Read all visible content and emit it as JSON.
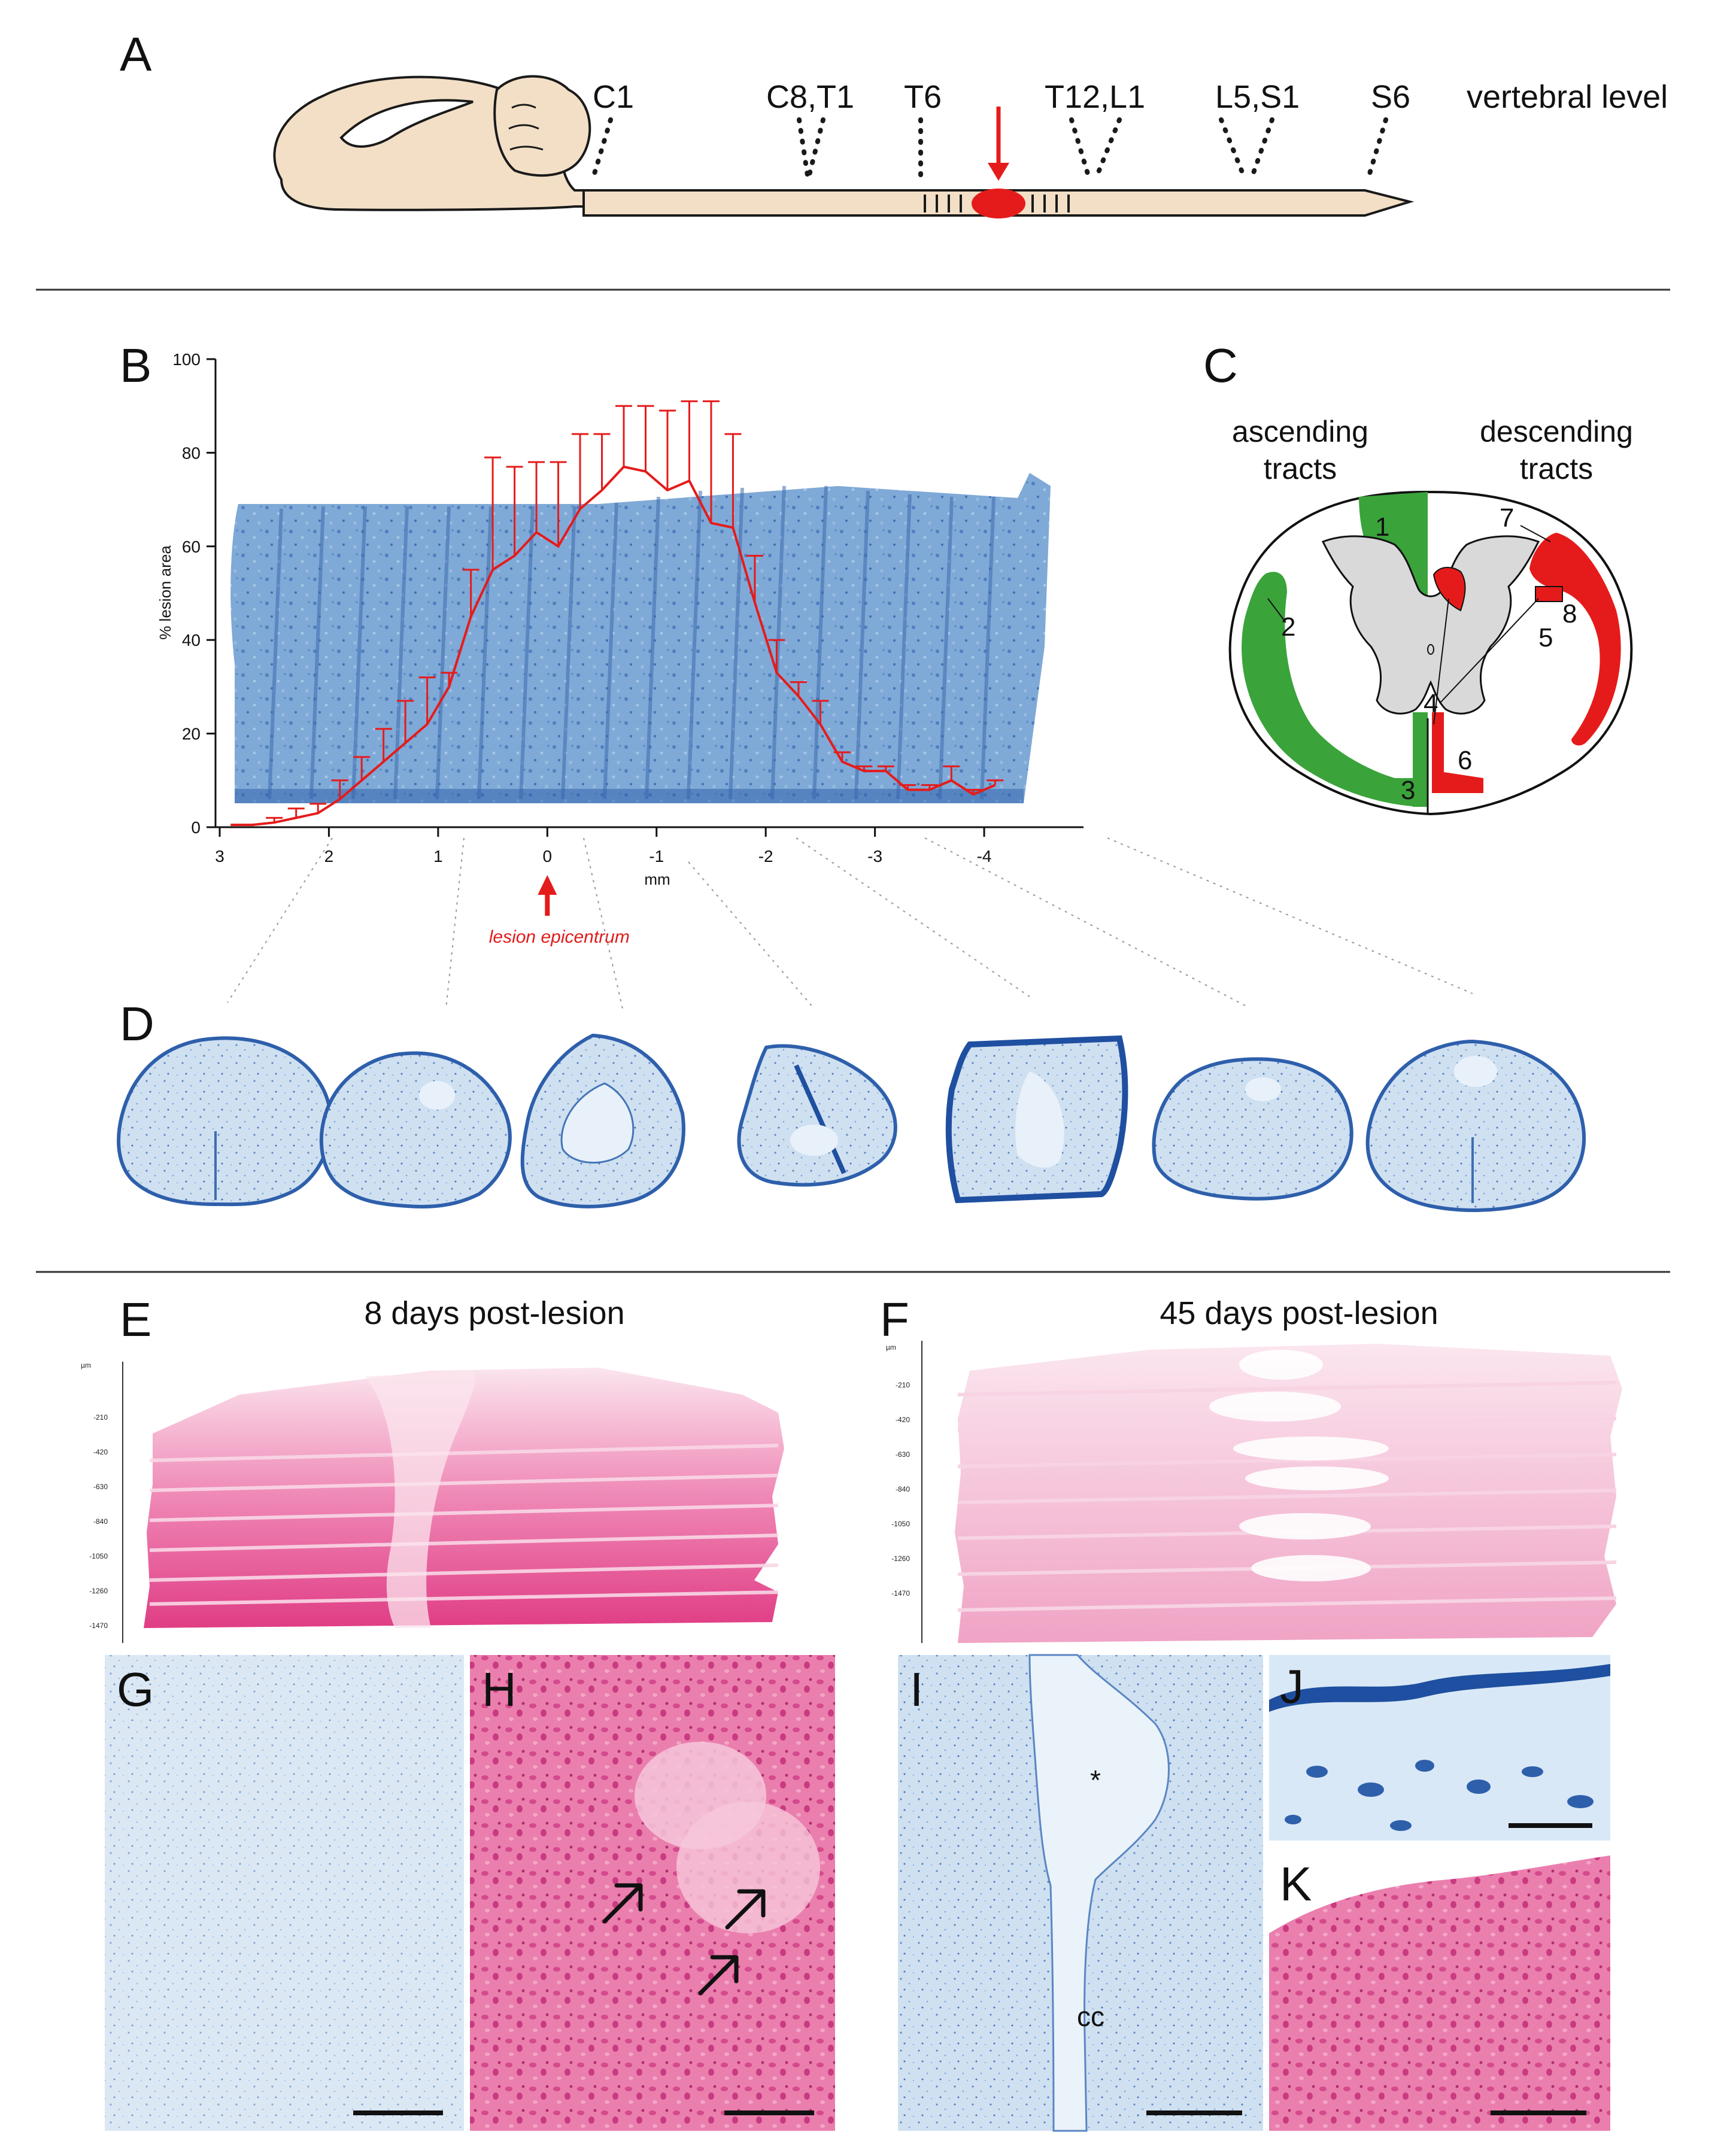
{
  "panels": {
    "a": "A",
    "b": "B",
    "c": "C",
    "d": "D",
    "e": "E",
    "f": "F",
    "g": "G",
    "h": "H",
    "i": "I",
    "j": "J",
    "k": "K"
  },
  "panel_a": {
    "levels": [
      "C1",
      "C8,T1",
      "T6",
      "T12,L1",
      "L5,S1",
      "S6"
    ],
    "level_title": "vertebral level"
  },
  "panel_c": {
    "ascending": [
      "ascending",
      "tracts"
    ],
    "descending": [
      "descending",
      "tracts"
    ],
    "tract_numbers": [
      "1",
      "2",
      "3",
      "4",
      "5",
      "6",
      "7",
      "8"
    ],
    "colors": {
      "ascending": "#3aa33a",
      "descending": "#e51b1b",
      "grey_matter": "#d9d9d9"
    }
  },
  "panel_e": {
    "title": "8 days post-lesion"
  },
  "panel_f": {
    "title": "45 days post-lesion"
  },
  "depth_scale": {
    "unit": "µm",
    "e_ticks": [
      "-210",
      "-420",
      "-630",
      "-840",
      "-1050",
      "-1260",
      "-1470"
    ],
    "f_ticks": [
      "-210",
      "-420",
      "-630",
      "-840",
      "-1050",
      "-1260",
      "-1470"
    ]
  },
  "panel_i": {
    "asterisk": "*",
    "canal_label": "cc"
  },
  "chart_data": {
    "type": "line",
    "title": "",
    "xlabel": "mm",
    "ylabel": "% lesion area",
    "xlim": [
      3,
      -4.8
    ],
    "ylim": [
      0,
      100
    ],
    "x_ticks": [
      3,
      2,
      1,
      0,
      -1,
      -2,
      -3,
      -4
    ],
    "x_tick_labels": [
      "3",
      "2",
      "1",
      "0",
      "-1",
      "-2",
      "-3",
      "-4"
    ],
    "y_ticks": [
      0,
      20,
      40,
      60,
      80,
      100
    ],
    "y_tick_labels": [
      "0",
      "20",
      "40",
      "60",
      "80",
      "100"
    ],
    "series": [
      {
        "name": "% lesion area",
        "color": "#e51b1b",
        "x": [
          2.9,
          2.7,
          2.5,
          2.3,
          2.1,
          1.9,
          1.7,
          1.5,
          1.3,
          1.1,
          0.9,
          0.7,
          0.5,
          0.3,
          0.1,
          -0.1,
          -0.3,
          -0.5,
          -0.7,
          -0.9,
          -1.1,
          -1.3,
          -1.5,
          -1.7,
          -1.9,
          -2.1,
          -2.3,
          -2.5,
          -2.7,
          -2.9,
          -3.1,
          -3.3,
          -3.5,
          -3.7,
          -3.9,
          -4.1
        ],
        "values": [
          0.5,
          0.5,
          1,
          2,
          3,
          6,
          10,
          14,
          18,
          22,
          30,
          45,
          55,
          58,
          63,
          60,
          68,
          72,
          77,
          76,
          72,
          74,
          65,
          64,
          48,
          33,
          28,
          22,
          14,
          12,
          12,
          8,
          8,
          10,
          7,
          9
        ],
        "errors": [
          0,
          0,
          1,
          2,
          2,
          4,
          5,
          7,
          9,
          10,
          3,
          10,
          24,
          19,
          15,
          18,
          16,
          12,
          13,
          14,
          17,
          17,
          26,
          20,
          10,
          7,
          3,
          5,
          2,
          1,
          1,
          1,
          1,
          3,
          1,
          1
        ]
      }
    ],
    "annotation": "lesion epicentrum",
    "annotation_x": 0
  }
}
